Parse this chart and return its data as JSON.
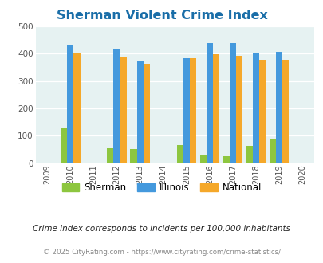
{
  "title": "Sherman Violent Crime Index",
  "all_years": [
    2009,
    2010,
    2011,
    2012,
    2013,
    2014,
    2015,
    2016,
    2017,
    2018,
    2019,
    2020
  ],
  "data_years": [
    2010,
    2012,
    2013,
    2015,
    2016,
    2017,
    2018,
    2019
  ],
  "sherman": [
    128,
    53,
    50,
    67,
    28,
    24,
    63,
    86
  ],
  "illinois": [
    433,
    415,
    372,
    383,
    438,
    438,
    405,
    408
  ],
  "national": [
    405,
    387,
    364,
    382,
    397,
    393,
    379,
    379
  ],
  "sherman_color": "#8dc63f",
  "illinois_color": "#4499dd",
  "national_color": "#f5a82a",
  "ylim": [
    0,
    500
  ],
  "yticks": [
    0,
    100,
    200,
    300,
    400,
    500
  ],
  "background_color": "#e6f2f2",
  "title_color": "#1a6ea8",
  "legend_labels": [
    "Sherman",
    "Illinois",
    "National"
  ],
  "footer_note": "Crime Index corresponds to incidents per 100,000 inhabitants",
  "footer_copy": "© 2025 CityRating.com - https://www.cityrating.com/crime-statistics/",
  "bar_width": 0.28
}
